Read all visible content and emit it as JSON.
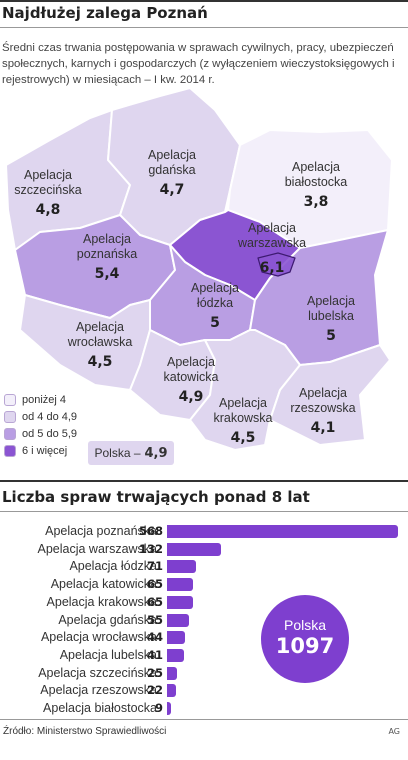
{
  "title": "Najdłużej zalega Poznań",
  "subtitle": "Średni czas trwania postępowania w sprawach cywilnych, pracy, ubezpieczeń społecznych, karnych i gospodarczych (z wyłączeniem wieczystoksięgowych i rejestrowych) w miesiącach – I kw. 2014 r.",
  "colors": {
    "below4": "#f3effa",
    "from4to49": "#dfd6ef",
    "from5to59": "#b99ee3",
    "from6": "#8b55d2",
    "bar": "#7e3fcf",
    "border": "#ffffff"
  },
  "map": {
    "regions": [
      {
        "name": "Apelacja szczecińska",
        "value": "4,8",
        "class": "from4to49"
      },
      {
        "name": "Apelacja gdańska",
        "value": "4,7",
        "class": "from4to49"
      },
      {
        "name": "Apelacja białostocka",
        "value": "3,8",
        "class": "below4"
      },
      {
        "name": "Apelacja poznańska",
        "value": "5,4",
        "class": "from5to59"
      },
      {
        "name": "Apelacja warszawska",
        "value": "6,1",
        "class": "from6"
      },
      {
        "name": "Apelacja łódzka",
        "value": "5",
        "class": "from5to59"
      },
      {
        "name": "Apelacja lubelska",
        "value": "5",
        "class": "from5to59"
      },
      {
        "name": "Apelacja wrocławska",
        "value": "4,5",
        "class": "from4to49"
      },
      {
        "name": "Apelacja katowicka",
        "value": "4,9",
        "class": "from4to49"
      },
      {
        "name": "Apelacja krakowska",
        "value": "4,5",
        "class": "from4to49"
      },
      {
        "name": "Apelacja rzeszowska",
        "value": "4,1",
        "class": "from4to49"
      }
    ]
  },
  "legend": [
    {
      "label": "poniżej 4",
      "class": "below4"
    },
    {
      "label": "od 4 do 4,9",
      "class": "from4to49"
    },
    {
      "label": "od 5 do 5,9",
      "class": "from5to59"
    },
    {
      "label": "6 i więcej",
      "class": "from6"
    }
  ],
  "polska_avg": {
    "label": "Polska –",
    "value": "4,9"
  },
  "bars_title": "Liczba spraw trwających ponad 8 lat",
  "chart_data": {
    "type": "bar",
    "orientation": "horizontal",
    "title": "Liczba spraw trwających ponad 8 lat",
    "categories": [
      "Apelacja poznańska",
      "Apelacja warszawska",
      "Apelacja łódzka",
      "Apelacja katowicka",
      "Apelacja krakowska",
      "Apelacja gdańska",
      "Apelacja wrocławska",
      "Apelacja lubelska",
      "Apelacja szczecińska",
      "Apelacja rzeszowska",
      "Apelacja białostocka"
    ],
    "values": [
      568,
      132,
      71,
      65,
      65,
      55,
      44,
      41,
      25,
      22,
      9
    ],
    "xlim": [
      0,
      568
    ]
  },
  "total": {
    "label": "Polska",
    "value": "1097"
  },
  "source": "Źródło: Ministerstwo Sprawiedliwości",
  "credit": "AG"
}
